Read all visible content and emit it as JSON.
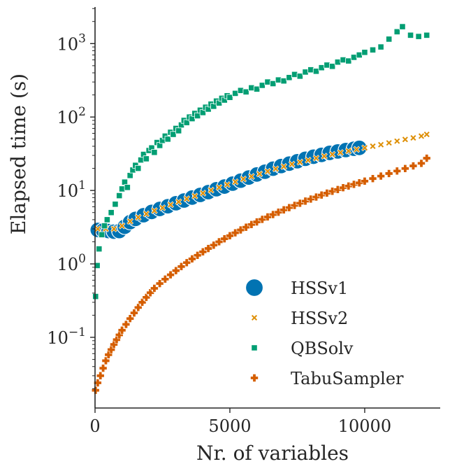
{
  "chart_data": {
    "type": "scatter",
    "title": "",
    "xlabel": "Nr. of variables",
    "ylabel": "Elapsed time (s)",
    "xlim": [
      0,
      12800
    ],
    "ylim": [
      0.0109,
      3150
    ],
    "y_scale": "log",
    "grid": false,
    "legend_position": "bottom-right",
    "x_ticks": [
      {
        "value": 0,
        "label": "0"
      },
      {
        "value": 5000,
        "label": "5000"
      },
      {
        "value": 10000,
        "label": "10000"
      }
    ],
    "y_ticks": [
      {
        "value": 0.1,
        "base": "10",
        "exp": "−1"
      },
      {
        "value": 1,
        "base": "10",
        "exp": "0"
      },
      {
        "value": 10,
        "base": "10",
        "exp": "1"
      },
      {
        "value": 100,
        "base": "10",
        "exp": "2"
      },
      {
        "value": 1000,
        "base": "10",
        "exp": "3"
      }
    ],
    "series": [
      {
        "name": "HSSv1",
        "marker": "circle",
        "color": "#0173b2",
        "points": [
          [
            100,
            2.9
          ],
          [
            300,
            2.85
          ],
          [
            500,
            2.8
          ],
          [
            700,
            2.75
          ],
          [
            900,
            2.8
          ],
          [
            1100,
            3.2
          ],
          [
            1300,
            3.7
          ],
          [
            1500,
            4.1
          ],
          [
            1800,
            4.6
          ],
          [
            2100,
            5.1
          ],
          [
            2400,
            5.6
          ],
          [
            2700,
            6.1
          ],
          [
            3000,
            6.7
          ],
          [
            3300,
            7.3
          ],
          [
            3600,
            8.0
          ],
          [
            3900,
            8.7
          ],
          [
            4200,
            9.5
          ],
          [
            4500,
            10.4
          ],
          [
            4800,
            11.3
          ],
          [
            5100,
            12.4
          ],
          [
            5400,
            13.6
          ],
          [
            5700,
            15.0
          ],
          [
            6000,
            16.5
          ],
          [
            6300,
            18.0
          ],
          [
            6600,
            19.8
          ],
          [
            6900,
            21.5
          ],
          [
            7200,
            23.2
          ],
          [
            7500,
            25.0
          ],
          [
            7800,
            27.0
          ],
          [
            8100,
            28.8
          ],
          [
            8400,
            30.5
          ],
          [
            8700,
            32.5
          ],
          [
            9000,
            34.0
          ],
          [
            9300,
            35.5
          ],
          [
            9600,
            37.0
          ],
          [
            9800,
            38.0
          ]
        ]
      },
      {
        "name": "HSSv2",
        "marker": "x",
        "color": "#de8f05",
        "points": [
          [
            100,
            3.0
          ],
          [
            400,
            3.0
          ],
          [
            700,
            3.0
          ],
          [
            1000,
            3.3
          ],
          [
            1300,
            3.8
          ],
          [
            1600,
            4.3
          ],
          [
            1900,
            4.8
          ],
          [
            2200,
            5.3
          ],
          [
            2500,
            5.8
          ],
          [
            2800,
            6.4
          ],
          [
            3100,
            7.0
          ],
          [
            3400,
            7.7
          ],
          [
            3700,
            8.4
          ],
          [
            4000,
            9.2
          ],
          [
            4300,
            10.1
          ],
          [
            4600,
            11.0
          ],
          [
            4900,
            12.0
          ],
          [
            5200,
            13.1
          ],
          [
            5500,
            14.3
          ],
          [
            5800,
            15.5
          ],
          [
            6100,
            16.8
          ],
          [
            6400,
            18.2
          ],
          [
            6700,
            19.7
          ],
          [
            7000,
            21.2
          ],
          [
            7300,
            22.8
          ],
          [
            7600,
            24.3
          ],
          [
            7900,
            25.8
          ],
          [
            8200,
            27.5
          ],
          [
            8500,
            29.3
          ],
          [
            8800,
            31.0
          ],
          [
            9100,
            32.8
          ],
          [
            9400,
            34.5
          ],
          [
            9700,
            36.2
          ],
          [
            10000,
            38.0
          ],
          [
            10300,
            40.0
          ],
          [
            10600,
            42.0
          ],
          [
            10900,
            44.5
          ],
          [
            11200,
            47.0
          ],
          [
            11500,
            49.5
          ],
          [
            11800,
            52.0
          ],
          [
            12100,
            55.0
          ],
          [
            12300,
            58.0
          ]
        ]
      },
      {
        "name": "QBSolv",
        "marker": "square",
        "color": "#029e73",
        "points": [
          [
            20,
            0.36
          ],
          [
            80,
            0.95
          ],
          [
            150,
            1.6
          ],
          [
            250,
            2.5
          ],
          [
            350,
            3.3
          ],
          [
            450,
            4.0
          ],
          [
            600,
            5.0
          ],
          [
            750,
            6.5
          ],
          [
            900,
            8.5
          ],
          [
            1000,
            10.5
          ],
          [
            1100,
            13
          ],
          [
            1200,
            11
          ],
          [
            1300,
            16
          ],
          [
            1400,
            19
          ],
          [
            1500,
            22
          ],
          [
            1600,
            20
          ],
          [
            1700,
            26
          ],
          [
            1800,
            31
          ],
          [
            1900,
            27
          ],
          [
            2000,
            35
          ],
          [
            2100,
            38
          ],
          [
            2200,
            33
          ],
          [
            2300,
            45
          ],
          [
            2400,
            41
          ],
          [
            2500,
            48
          ],
          [
            2600,
            55
          ],
          [
            2700,
            50
          ],
          [
            2800,
            62
          ],
          [
            2900,
            58
          ],
          [
            3000,
            70
          ],
          [
            3100,
            65
          ],
          [
            3200,
            78
          ],
          [
            3300,
            90
          ],
          [
            3400,
            84
          ],
          [
            3500,
            100
          ],
          [
            3600,
            95
          ],
          [
            3700,
            112
          ],
          [
            3800,
            104
          ],
          [
            3900,
            124
          ],
          [
            4000,
            115
          ],
          [
            4100,
            136
          ],
          [
            4200,
            128
          ],
          [
            4300,
            150
          ],
          [
            4400,
            140
          ],
          [
            4500,
            165
          ],
          [
            4600,
            155
          ],
          [
            4700,
            180
          ],
          [
            4800,
            170
          ],
          [
            4900,
            195
          ],
          [
            5000,
            185
          ],
          [
            5200,
            210
          ],
          [
            5400,
            230
          ],
          [
            5600,
            220
          ],
          [
            5800,
            250
          ],
          [
            6000,
            240
          ],
          [
            6200,
            270
          ],
          [
            6400,
            300
          ],
          [
            6600,
            285
          ],
          [
            6800,
            320
          ],
          [
            7000,
            310
          ],
          [
            7200,
            345
          ],
          [
            7400,
            380
          ],
          [
            7600,
            360
          ],
          [
            7800,
            410
          ],
          [
            8000,
            440
          ],
          [
            8200,
            420
          ],
          [
            8400,
            470
          ],
          [
            8600,
            510
          ],
          [
            8800,
            490
          ],
          [
            9000,
            560
          ],
          [
            9200,
            600
          ],
          [
            9400,
            580
          ],
          [
            9600,
            650
          ],
          [
            9800,
            700
          ],
          [
            10000,
            760
          ],
          [
            10300,
            820
          ],
          [
            10600,
            900
          ],
          [
            10900,
            1150
          ],
          [
            11200,
            1450
          ],
          [
            11400,
            1700
          ],
          [
            11700,
            1300
          ],
          [
            12000,
            1250
          ],
          [
            12300,
            1300
          ]
        ]
      },
      {
        "name": "TabuSampler",
        "marker": "plus",
        "color": "#d55e00",
        "points": [
          [
            20,
            0.019
          ],
          [
            100,
            0.024
          ],
          [
            200,
            0.03
          ],
          [
            300,
            0.038
          ],
          [
            400,
            0.048
          ],
          [
            500,
            0.058
          ],
          [
            600,
            0.068
          ],
          [
            700,
            0.08
          ],
          [
            800,
            0.093
          ],
          [
            900,
            0.108
          ],
          [
            1000,
            0.125
          ],
          [
            1150,
            0.15
          ],
          [
            1300,
            0.18
          ],
          [
            1450,
            0.215
          ],
          [
            1600,
            0.255
          ],
          [
            1750,
            0.3
          ],
          [
            1900,
            0.35
          ],
          [
            2050,
            0.405
          ],
          [
            2200,
            0.465
          ],
          [
            2400,
            0.54
          ],
          [
            2600,
            0.62
          ],
          [
            2800,
            0.71
          ],
          [
            3000,
            0.81
          ],
          [
            3200,
            0.92
          ],
          [
            3400,
            1.04
          ],
          [
            3600,
            1.17
          ],
          [
            3800,
            1.31
          ],
          [
            4000,
            1.46
          ],
          [
            4200,
            1.62
          ],
          [
            4400,
            1.8
          ],
          [
            4600,
            2.0
          ],
          [
            4800,
            2.2
          ],
          [
            5000,
            2.42
          ],
          [
            5200,
            2.65
          ],
          [
            5400,
            2.9
          ],
          [
            5600,
            3.16
          ],
          [
            5800,
            3.44
          ],
          [
            6000,
            3.73
          ],
          [
            6200,
            4.04
          ],
          [
            6400,
            4.36
          ],
          [
            6600,
            4.7
          ],
          [
            6800,
            5.06
          ],
          [
            7000,
            5.44
          ],
          [
            7200,
            5.84
          ],
          [
            7400,
            6.26
          ],
          [
            7600,
            6.7
          ],
          [
            7800,
            7.16
          ],
          [
            8000,
            7.64
          ],
          [
            8200,
            8.14
          ],
          [
            8400,
            8.66
          ],
          [
            8600,
            9.2
          ],
          [
            8800,
            9.76
          ],
          [
            9000,
            10.3
          ],
          [
            9200,
            10.9
          ],
          [
            9400,
            11.5
          ],
          [
            9600,
            12.1
          ],
          [
            9800,
            12.7
          ],
          [
            10000,
            13.4
          ],
          [
            10300,
            14.5
          ],
          [
            10600,
            15.7
          ],
          [
            10900,
            17.0
          ],
          [
            11200,
            18.4
          ],
          [
            11500,
            19.9
          ],
          [
            11800,
            21.6
          ],
          [
            12100,
            23.4
          ],
          [
            12300,
            27.5
          ]
        ]
      }
    ]
  }
}
